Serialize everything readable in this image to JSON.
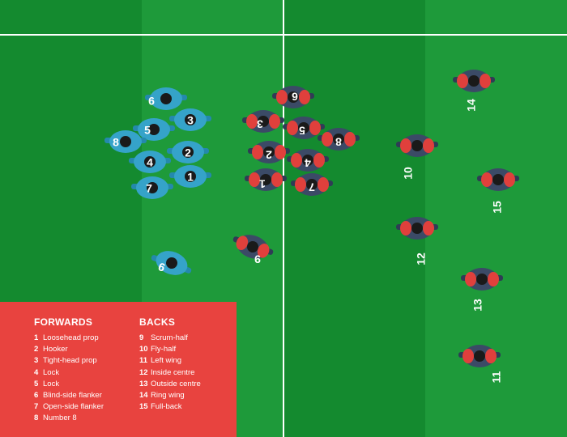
{
  "colors": {
    "pitch_light": "#1e9a3a",
    "pitch_dark": "#148a2f",
    "line": "#ffffff",
    "blue_team": "#35a3c9",
    "blue_team_dark": "#2489ad",
    "red_team_shirt": "#3b4a66",
    "red_team_accent": "#e0403c",
    "legend_bg": "#e8433f"
  },
  "blue_players": [
    {
      "number": "6"
    },
    {
      "number": "3"
    },
    {
      "number": "5"
    },
    {
      "number": "8"
    },
    {
      "number": "2"
    },
    {
      "number": "4"
    },
    {
      "number": "1"
    },
    {
      "number": "7"
    },
    {
      "number": "9"
    }
  ],
  "red_players": [
    {
      "number": "6"
    },
    {
      "number": "3"
    },
    {
      "number": "5"
    },
    {
      "number": "8"
    },
    {
      "number": "2"
    },
    {
      "number": "4"
    },
    {
      "number": "1"
    },
    {
      "number": "7"
    },
    {
      "number": "9"
    },
    {
      "number": "10"
    },
    {
      "number": "14"
    },
    {
      "number": "15"
    },
    {
      "number": "12"
    },
    {
      "number": "13"
    },
    {
      "number": "11"
    }
  ],
  "legend": {
    "forwards_title": "FORWARDS",
    "backs_title": "BACKS",
    "forwards": [
      {
        "num": "1",
        "label": "Loosehead prop"
      },
      {
        "num": "2",
        "label": "Hooker"
      },
      {
        "num": "3",
        "label": "Tight-head prop"
      },
      {
        "num": "4",
        "label": "Lock"
      },
      {
        "num": "5",
        "label": "Lock"
      },
      {
        "num": "6",
        "label": "Blind-side flanker"
      },
      {
        "num": "7",
        "label": "Open-side flanker"
      },
      {
        "num": "8",
        "label": "Number 8"
      }
    ],
    "backs": [
      {
        "num": "9",
        "label": "Scrum-half"
      },
      {
        "num": "10",
        "label": "Fly-half"
      },
      {
        "num": "11",
        "label": "Left wing"
      },
      {
        "num": "12",
        "label": "Inside centre"
      },
      {
        "num": "13",
        "label": "Outside centre"
      },
      {
        "num": "14",
        "label": "Ring wing"
      },
      {
        "num": "15",
        "label": "Full-back"
      }
    ]
  }
}
